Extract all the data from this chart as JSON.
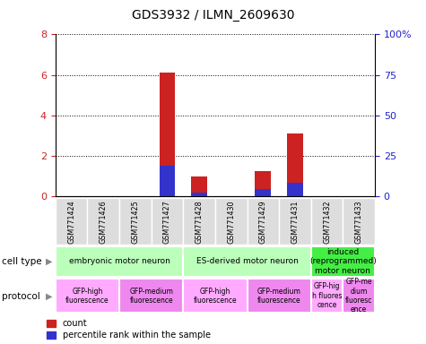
{
  "title": "GDS3932 / ILMN_2609630",
  "samples": [
    "GSM771424",
    "GSM771426",
    "GSM771425",
    "GSM771427",
    "GSM771428",
    "GSM771430",
    "GSM771429",
    "GSM771431",
    "GSM771432",
    "GSM771433"
  ],
  "count_values": [
    0,
    0,
    0,
    6.1,
    0.95,
    0,
    1.25,
    3.1,
    0,
    0
  ],
  "percentile_values": [
    0,
    0,
    0,
    1.5,
    0.18,
    0,
    0.35,
    0.65,
    0,
    0
  ],
  "ylim_left": [
    0,
    8
  ],
  "ylim_right": [
    0,
    100
  ],
  "yticks_left": [
    0,
    2,
    4,
    6,
    8
  ],
  "yticks_right": [
    0,
    25,
    50,
    75,
    100
  ],
  "ytick_labels_right": [
    "0",
    "25",
    "50",
    "75",
    "100%"
  ],
  "bar_width": 0.5,
  "count_color": "#cc2222",
  "percentile_color": "#3333cc",
  "cell_groups": [
    {
      "label": "embryonic motor neuron",
      "start": 0,
      "end": 4,
      "color": "#bbffbb"
    },
    {
      "label": "ES-derived motor neuron",
      "start": 4,
      "end": 8,
      "color": "#bbffbb"
    },
    {
      "label": "induced\n(reprogrammed)\nmotor neuron",
      "start": 8,
      "end": 10,
      "color": "#44ee44"
    }
  ],
  "protocol_groups": [
    {
      "label": "GFP-high\nfluorescence",
      "start": 0,
      "end": 2,
      "color": "#ffaaff"
    },
    {
      "label": "GFP-medium\nfluorescence",
      "start": 2,
      "end": 4,
      "color": "#ee88ee"
    },
    {
      "label": "GFP-high\nfluorescence",
      "start": 4,
      "end": 6,
      "color": "#ffaaff"
    },
    {
      "label": "GFP-medium\nfluorescence",
      "start": 6,
      "end": 8,
      "color": "#ee88ee"
    },
    {
      "label": "GFP-hig\nh fluores\ncence",
      "start": 8,
      "end": 9,
      "color": "#ffaaff"
    },
    {
      "label": "GFP-me\ndium\nfluoresc\nence",
      "start": 9,
      "end": 10,
      "color": "#ee88ee"
    }
  ],
  "legend_count_label": "count",
  "legend_percentile_label": "percentile rank within the sample",
  "left_ytick_color": "#cc2222",
  "right_ytick_color": "#2222cc",
  "left_spine_color": "#000000",
  "right_spine_color": "#000000"
}
